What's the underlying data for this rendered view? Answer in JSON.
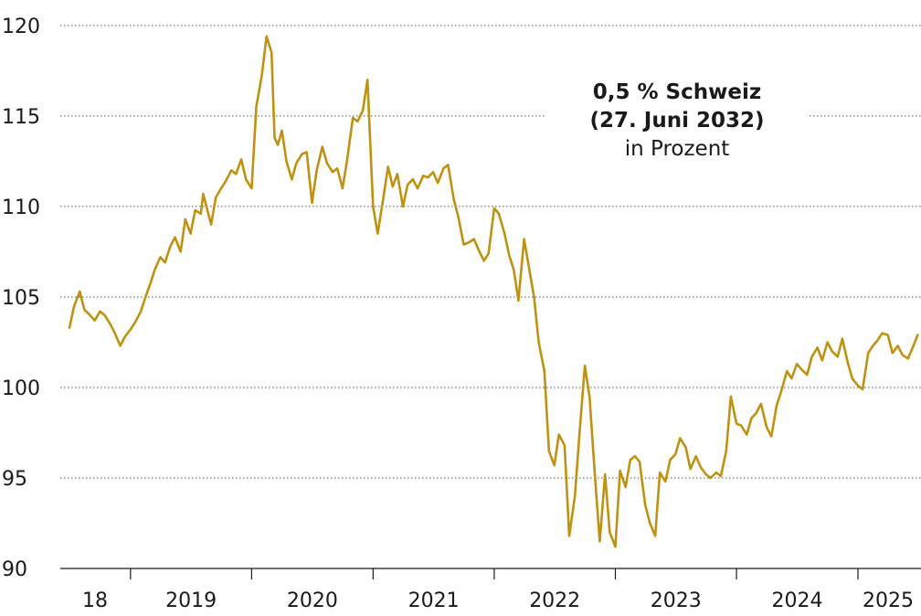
{
  "chart_data": {
    "type": "line",
    "title": "0,5 % Schweiz",
    "subtitle": "(27. Juni 2032)",
    "unit_label": "in Prozent",
    "ylim": [
      90,
      120.5
    ],
    "y_ticks": [
      "120",
      "115",
      "110",
      "105",
      "100",
      "95",
      "90"
    ],
    "x_labels": [
      "18",
      "2019",
      "2020",
      "2021",
      "2022",
      "2023",
      "2024",
      "2025"
    ],
    "year_starts": [
      "2019-01-01",
      "2020-01-01",
      "2021-01-01",
      "2022-01-01",
      "2023-01-01",
      "2024-01-01",
      "2025-01-01"
    ],
    "grid": "horizontal dotted",
    "colors": {
      "line": "#c09212",
      "grid": "#555555",
      "text": "#1a1a1a"
    },
    "series": [
      {
        "x": [
          "2018-07-01",
          "2018-07-15",
          "2018-08-01",
          "2018-08-15",
          "2018-09-01",
          "2018-09-15",
          "2018-10-01",
          "2018-10-15",
          "2018-11-01",
          "2018-11-15",
          "2018-12-01",
          "2018-12-15",
          "2019-01-01",
          "2019-01-15",
          "2019-02-01",
          "2019-02-15",
          "2019-03-01",
          "2019-03-15",
          "2019-04-01",
          "2019-04-15",
          "2019-05-01",
          "2019-05-15",
          "2019-06-01",
          "2019-06-15",
          "2019-07-01",
          "2019-07-15",
          "2019-08-01",
          "2019-08-08",
          "2019-08-15",
          "2019-09-01",
          "2019-09-15",
          "2019-10-01",
          "2019-10-15",
          "2019-11-01",
          "2019-11-15",
          "2019-12-01",
          "2019-12-15",
          "2020-01-01",
          "2020-01-15",
          "2020-02-01",
          "2020-02-15",
          "2020-03-01",
          "2020-03-10",
          "2020-03-20",
          "2020-04-01",
          "2020-04-15",
          "2020-05-01",
          "2020-05-15",
          "2020-06-01",
          "2020-06-15",
          "2020-07-01",
          "2020-07-15",
          "2020-08-01",
          "2020-08-15",
          "2020-09-01",
          "2020-09-15",
          "2020-10-01",
          "2020-10-15",
          "2020-11-01",
          "2020-11-15",
          "2020-12-01",
          "2020-12-15",
          "2021-01-01",
          "2021-01-15",
          "2021-02-01",
          "2021-02-15",
          "2021-03-01",
          "2021-03-15",
          "2021-04-01",
          "2021-04-15",
          "2021-05-01",
          "2021-05-15",
          "2021-06-01",
          "2021-06-15",
          "2021-07-01",
          "2021-07-15",
          "2021-08-01",
          "2021-08-15",
          "2021-09-01",
          "2021-09-15",
          "2021-10-01",
          "2021-10-15",
          "2021-11-01",
          "2021-11-15",
          "2021-12-01",
          "2021-12-15",
          "2022-01-01",
          "2022-01-15",
          "2022-02-01",
          "2022-02-15",
          "2022-03-01",
          "2022-03-15",
          "2022-04-01",
          "2022-04-15",
          "2022-05-01",
          "2022-05-15",
          "2022-06-01",
          "2022-06-15",
          "2022-07-01",
          "2022-07-15",
          "2022-08-01",
          "2022-08-15",
          "2022-09-01",
          "2022-09-15",
          "2022-10-01",
          "2022-10-15",
          "2022-11-01",
          "2022-11-15",
          "2022-12-01",
          "2022-12-15",
          "2023-01-01",
          "2023-01-15",
          "2023-02-01",
          "2023-02-15",
          "2023-03-01",
          "2023-03-15",
          "2023-04-01",
          "2023-04-15",
          "2023-05-01",
          "2023-05-15",
          "2023-06-01",
          "2023-06-15",
          "2023-07-01",
          "2023-07-15",
          "2023-08-01",
          "2023-08-15",
          "2023-09-01",
          "2023-09-15",
          "2023-10-01",
          "2023-10-15",
          "2023-11-01",
          "2023-11-15",
          "2023-12-01",
          "2023-12-15",
          "2024-01-01",
          "2024-01-15",
          "2024-02-01",
          "2024-02-15",
          "2024-03-01",
          "2024-03-15",
          "2024-04-01",
          "2024-04-15",
          "2024-05-01",
          "2024-05-15",
          "2024-06-01",
          "2024-06-15",
          "2024-07-01",
          "2024-07-15",
          "2024-08-01",
          "2024-08-15",
          "2024-09-01",
          "2024-09-15",
          "2024-10-01",
          "2024-10-15",
          "2024-11-01",
          "2024-11-15",
          "2024-12-01",
          "2024-12-15",
          "2025-01-01",
          "2025-01-15",
          "2025-02-01",
          "2025-02-15",
          "2025-03-01",
          "2025-03-15",
          "2025-04-01",
          "2025-04-15",
          "2025-05-01",
          "2025-05-15",
          "2025-06-01",
          "2025-06-15",
          "2025-06-30"
        ],
        "y": [
          103.3,
          104.5,
          105.3,
          104.3,
          104.0,
          103.7,
          104.2,
          104.0,
          103.5,
          103.0,
          102.3,
          102.8,
          103.2,
          103.6,
          104.2,
          105.0,
          105.7,
          106.5,
          107.2,
          106.9,
          107.8,
          108.3,
          107.5,
          109.3,
          108.5,
          109.8,
          109.6,
          110.7,
          110.2,
          109.0,
          110.5,
          111.0,
          111.4,
          112.0,
          111.8,
          112.6,
          111.5,
          111.0,
          115.5,
          117.3,
          119.4,
          118.5,
          113.8,
          113.4,
          114.2,
          112.5,
          111.5,
          112.4,
          112.9,
          113.0,
          110.2,
          112.0,
          113.3,
          112.4,
          111.9,
          112.1,
          111.0,
          112.6,
          114.9,
          114.7,
          115.3,
          117.0,
          110.0,
          108.5,
          110.5,
          112.2,
          111.1,
          111.8,
          110.0,
          111.2,
          111.5,
          111.0,
          111.7,
          111.6,
          111.9,
          111.3,
          112.1,
          112.3,
          110.4,
          109.4,
          107.9,
          108.0,
          108.2,
          107.6,
          107.0,
          107.4,
          109.9,
          109.6,
          108.5,
          107.3,
          106.5,
          104.8,
          108.2,
          106.7,
          105.0,
          102.5,
          100.9,
          96.5,
          95.7,
          97.4,
          96.8,
          91.8,
          94.0,
          97.5,
          101.2,
          99.5,
          95.0,
          91.5,
          95.2,
          92.0,
          91.2,
          95.4,
          94.5,
          96.0,
          96.2,
          95.9,
          93.5,
          92.5,
          91.8,
          95.3,
          94.8,
          96.0,
          96.3,
          97.2,
          96.7,
          95.5,
          96.2,
          95.6,
          95.2,
          95.0,
          95.3,
          95.1,
          96.5,
          99.5,
          98.0,
          97.9,
          97.4,
          98.3,
          98.6,
          99.1,
          97.8,
          97.3,
          99.0,
          99.8,
          100.9,
          100.5,
          101.3,
          101.0,
          100.7,
          101.7,
          102.2,
          101.5,
          102.5,
          102.0,
          101.7,
          102.7,
          101.4,
          100.5,
          100.1,
          99.9,
          101.9,
          102.3,
          102.6,
          103.0,
          102.9,
          101.9,
          102.3,
          101.8,
          101.6,
          102.2,
          102.9
        ]
      }
    ]
  }
}
